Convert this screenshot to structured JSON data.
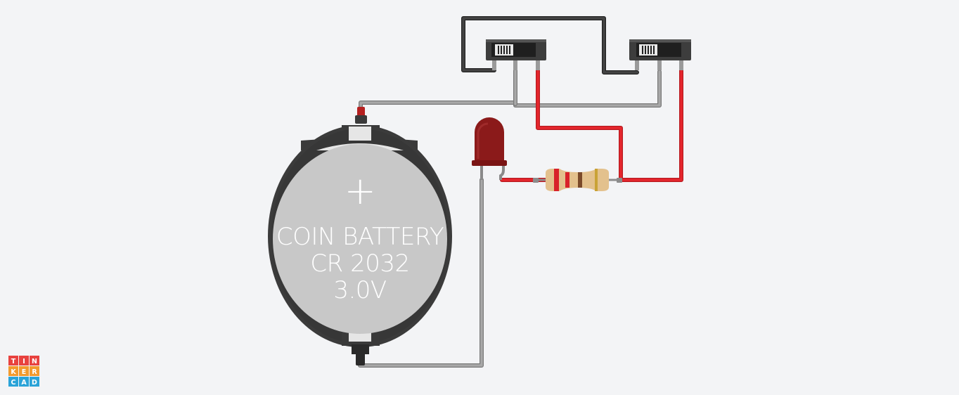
{
  "diagram": {
    "battery": {
      "line1": "COIN BATTERY",
      "line2": "CR 2032",
      "line3": "3.0V",
      "plus": "+"
    },
    "logo": {
      "letters": [
        "T",
        "I",
        "N",
        "K",
        "E",
        "R",
        "C",
        "A",
        "D"
      ],
      "colors": [
        "#e8423f",
        "#e8423f",
        "#e8423f",
        "#f29a2e",
        "#f29a2e",
        "#f29a2e",
        "#2aa3d8",
        "#2aa3d8",
        "#2aa3d8"
      ]
    },
    "colors": {
      "wire_red": "#e6262d",
      "wire_gray": "#9b9b9b",
      "wire_black": "#3a3a3a",
      "battery_body": "#c8c8c8",
      "battery_holder": "#3b3b3b",
      "led_red": "#8b1a1a",
      "resistor_body": "#e3c18d"
    }
  }
}
